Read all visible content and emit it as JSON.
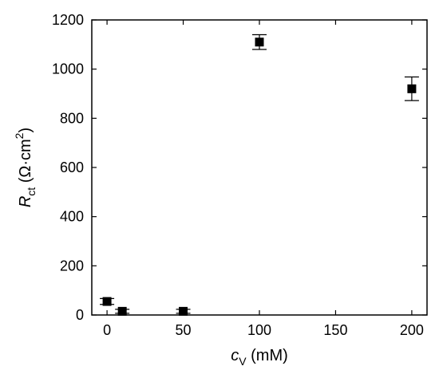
{
  "chart_data": {
    "type": "scatter",
    "xlabel": {
      "var": "c",
      "sub": "V",
      "unit": " (mM)"
    },
    "ylabel": {
      "var": "R",
      "sub": "ct",
      "unit_pre": " (Ω·cm",
      "unit_sup": "2",
      "unit_post": ")"
    },
    "xlim": [
      -10,
      210
    ],
    "ylim": [
      0,
      1200
    ],
    "xticks": [
      0,
      50,
      100,
      150,
      200
    ],
    "yticks": [
      0,
      200,
      400,
      600,
      800,
      1000,
      1200
    ],
    "grid": false,
    "marker": "square",
    "color": "#000000",
    "points": [
      {
        "x": 0,
        "y": 55,
        "err": 12
      },
      {
        "x": 10,
        "y": 15,
        "err": 8
      },
      {
        "x": 50,
        "y": 15,
        "err": 8
      },
      {
        "x": 100,
        "y": 1110,
        "err": 30
      },
      {
        "x": 200,
        "y": 920,
        "err": 48
      }
    ]
  }
}
